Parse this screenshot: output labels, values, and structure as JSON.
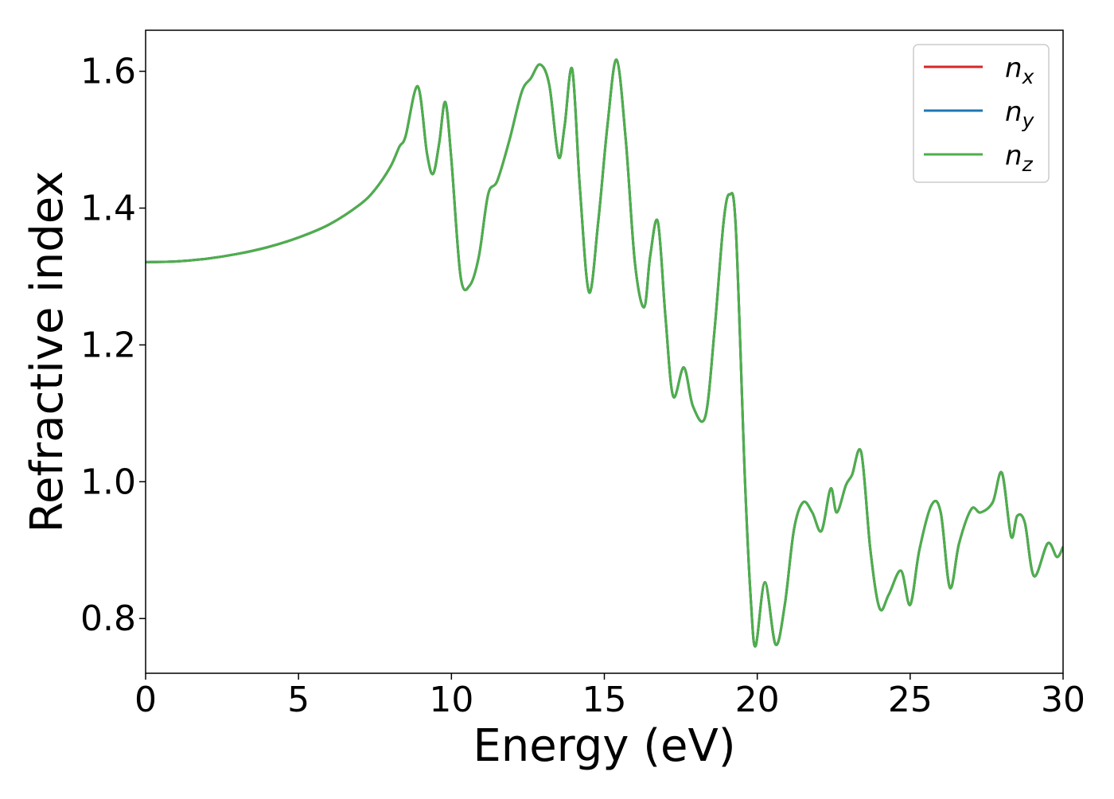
{
  "chart_data": {
    "type": "line",
    "title": "",
    "xlabel": "Energy (eV)",
    "ylabel": "Refractive index",
    "xlim": [
      0,
      30
    ],
    "ylim": [
      0.72,
      1.66
    ],
    "xticks": [
      0,
      5,
      10,
      15,
      20,
      25,
      30
    ],
    "xtick_labels": [
      "0",
      "5",
      "10",
      "15",
      "20",
      "25",
      "30"
    ],
    "yticks": [
      0.8,
      1.0,
      1.2,
      1.4,
      1.6
    ],
    "ytick_labels": [
      "0.8",
      "1.0",
      "1.2",
      "1.4",
      "1.6"
    ],
    "grid": false,
    "legend_position": "top-right",
    "x": [
      0,
      1,
      2,
      3,
      4,
      5,
      6,
      7,
      7.5,
      8,
      8.3,
      8.5,
      8.9,
      9.2,
      9.4,
      9.6,
      9.8,
      10.0,
      10.3,
      10.6,
      10.9,
      11.2,
      11.5,
      11.9,
      12.3,
      12.6,
      12.9,
      13.2,
      13.5,
      13.7,
      13.95,
      14.2,
      14.5,
      14.8,
      15.1,
      15.4,
      15.7,
      16.0,
      16.3,
      16.5,
      16.75,
      17.0,
      17.25,
      17.6,
      17.9,
      18.3,
      18.6,
      18.9,
      19.1,
      19.3,
      19.6,
      19.8,
      19.95,
      20.25,
      20.6,
      20.9,
      21.2,
      21.5,
      21.8,
      22.1,
      22.4,
      22.6,
      22.9,
      23.1,
      23.4,
      23.7,
      24.0,
      24.3,
      24.7,
      25.0,
      25.3,
      25.7,
      26.0,
      26.3,
      26.6,
      27.0,
      27.3,
      27.7,
      28.0,
      28.3,
      28.5,
      28.75,
      29.05,
      29.5,
      29.8,
      30.0
    ],
    "series": [
      {
        "name": "n_x",
        "color": "#d62728",
        "values": [
          1.321,
          1.322,
          1.326,
          1.333,
          1.343,
          1.357,
          1.376,
          1.405,
          1.427,
          1.46,
          1.49,
          1.505,
          1.578,
          1.48,
          1.45,
          1.495,
          1.555,
          1.47,
          1.3,
          1.287,
          1.33,
          1.42,
          1.44,
          1.5,
          1.57,
          1.59,
          1.61,
          1.58,
          1.475,
          1.52,
          1.603,
          1.43,
          1.277,
          1.38,
          1.52,
          1.617,
          1.5,
          1.32,
          1.255,
          1.33,
          1.38,
          1.24,
          1.125,
          1.167,
          1.11,
          1.095,
          1.22,
          1.38,
          1.42,
          1.37,
          1.0,
          0.82,
          0.76,
          0.853,
          0.762,
          0.82,
          0.93,
          0.97,
          0.955,
          0.928,
          0.99,
          0.955,
          0.995,
          1.01,
          1.043,
          0.9,
          0.815,
          0.835,
          0.87,
          0.82,
          0.9,
          0.966,
          0.955,
          0.845,
          0.91,
          0.96,
          0.955,
          0.97,
          1.013,
          0.92,
          0.95,
          0.94,
          0.862,
          0.91,
          0.89,
          0.905
        ]
      },
      {
        "name": "n_y",
        "color": "#1f77b4",
        "values": [
          1.321,
          1.322,
          1.326,
          1.333,
          1.343,
          1.357,
          1.376,
          1.405,
          1.427,
          1.46,
          1.49,
          1.505,
          1.578,
          1.48,
          1.45,
          1.495,
          1.555,
          1.47,
          1.3,
          1.287,
          1.33,
          1.42,
          1.44,
          1.5,
          1.57,
          1.59,
          1.61,
          1.58,
          1.475,
          1.52,
          1.603,
          1.43,
          1.277,
          1.38,
          1.52,
          1.617,
          1.5,
          1.32,
          1.255,
          1.33,
          1.38,
          1.24,
          1.125,
          1.167,
          1.11,
          1.095,
          1.22,
          1.38,
          1.42,
          1.37,
          1.0,
          0.82,
          0.76,
          0.853,
          0.762,
          0.82,
          0.93,
          0.97,
          0.955,
          0.928,
          0.99,
          0.955,
          0.995,
          1.01,
          1.043,
          0.9,
          0.815,
          0.835,
          0.87,
          0.82,
          0.9,
          0.966,
          0.955,
          0.845,
          0.91,
          0.96,
          0.955,
          0.97,
          1.013,
          0.92,
          0.95,
          0.94,
          0.862,
          0.91,
          0.89,
          0.905
        ]
      },
      {
        "name": "n_z",
        "color": "#4daf4a",
        "values": [
          1.321,
          1.322,
          1.326,
          1.333,
          1.343,
          1.357,
          1.376,
          1.405,
          1.427,
          1.46,
          1.49,
          1.505,
          1.578,
          1.48,
          1.45,
          1.495,
          1.555,
          1.47,
          1.3,
          1.287,
          1.33,
          1.42,
          1.44,
          1.5,
          1.57,
          1.59,
          1.61,
          1.58,
          1.475,
          1.52,
          1.603,
          1.43,
          1.277,
          1.38,
          1.52,
          1.617,
          1.5,
          1.32,
          1.255,
          1.33,
          1.38,
          1.24,
          1.125,
          1.167,
          1.11,
          1.095,
          1.22,
          1.38,
          1.42,
          1.37,
          1.0,
          0.82,
          0.76,
          0.853,
          0.762,
          0.82,
          0.93,
          0.97,
          0.955,
          0.928,
          0.99,
          0.955,
          0.995,
          1.01,
          1.043,
          0.9,
          0.815,
          0.835,
          0.87,
          0.82,
          0.9,
          0.966,
          0.955,
          0.845,
          0.91,
          0.96,
          0.955,
          0.97,
          1.013,
          0.92,
          0.95,
          0.94,
          0.862,
          0.91,
          0.89,
          0.905
        ]
      }
    ],
    "legend": [
      {
        "base": "n",
        "sub": "x",
        "color": "#d62728"
      },
      {
        "base": "n",
        "sub": "y",
        "color": "#1f77b4"
      },
      {
        "base": "n",
        "sub": "z",
        "color": "#4daf4a"
      }
    ]
  }
}
